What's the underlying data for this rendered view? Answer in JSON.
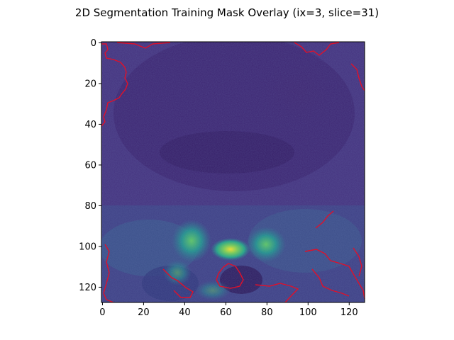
{
  "figure": {
    "title": "2D Segmentation Training Mask Overlay (ix=3, slice=31)",
    "x_ticks": [
      "0",
      "20",
      "40",
      "60",
      "80",
      "100",
      "120"
    ],
    "y_ticks": [
      "0",
      "20",
      "40",
      "60",
      "80",
      "100",
      "120"
    ],
    "x_range": [
      -0.5,
      127.5
    ],
    "y_range": [
      -0.5,
      127.5
    ],
    "colormap": "viridis",
    "overlay_color": "#e0102a"
  }
}
